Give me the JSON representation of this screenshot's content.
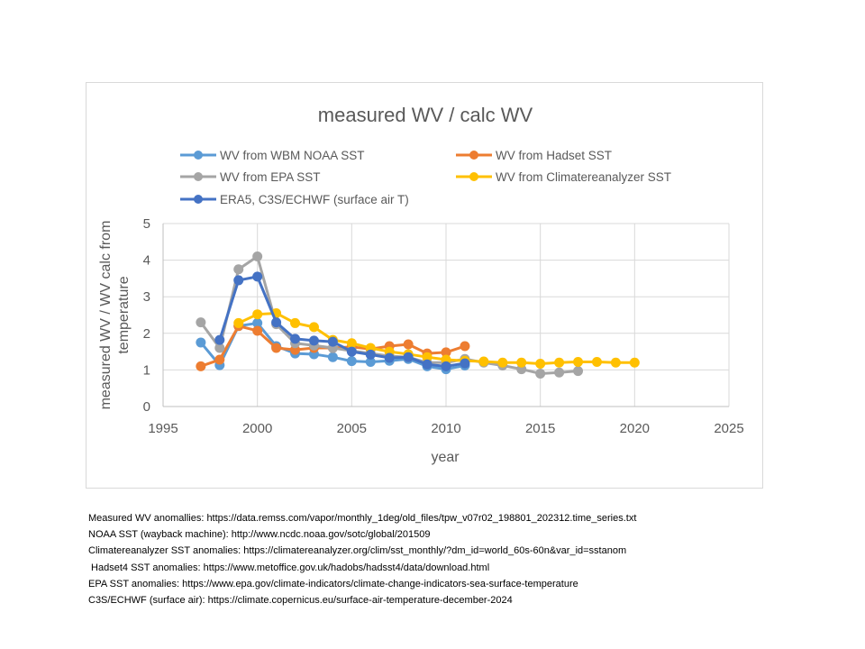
{
  "chart_data": {
    "type": "line",
    "title": "measured WV / calc WV",
    "xlabel": "year",
    "ylabel_lines": [
      "measured WV / WV calc from",
      "temperature"
    ],
    "xlim": [
      1995,
      2025
    ],
    "ylim": [
      0,
      5
    ],
    "x_ticks": [
      1995,
      2000,
      2005,
      2010,
      2015,
      2020,
      2025
    ],
    "y_ticks": [
      0,
      1,
      2,
      3,
      4,
      5
    ],
    "grid": true,
    "legend_position": "top",
    "series": [
      {
        "name": "WV from WBM NOAA  SST",
        "color": "#5B9BD5",
        "x": [
          1997,
          1998,
          1999,
          2000,
          2001,
          2002,
          2003,
          2004,
          2005,
          2006,
          2007,
          2008,
          2009,
          2010,
          2011
        ],
        "y": [
          1.75,
          1.13,
          2.2,
          2.28,
          1.65,
          1.45,
          1.43,
          1.35,
          1.24,
          1.22,
          1.25,
          1.3,
          1.1,
          1.02,
          1.12
        ]
      },
      {
        "name": "WV from Hadset SST",
        "color": "#ED7D31",
        "x": [
          1997,
          1998,
          1999,
          2000,
          2001,
          2002,
          2003,
          2004,
          2005,
          2006,
          2007,
          2008,
          2009,
          2010,
          2011
        ],
        "y": [
          1.1,
          1.28,
          2.2,
          2.07,
          1.6,
          1.55,
          1.6,
          1.6,
          1.63,
          1.57,
          1.65,
          1.7,
          1.45,
          1.48,
          1.65
        ]
      },
      {
        "name": "WV from EPA SST",
        "color": "#A5A5A5",
        "x": [
          1997,
          1998,
          1999,
          2000,
          2001,
          2002,
          2003,
          2004,
          2005,
          2006,
          2007,
          2008,
          2009,
          2010,
          2011,
          2012,
          2013,
          2014,
          2015,
          2016,
          2017
        ],
        "y": [
          2.3,
          1.6,
          3.75,
          4.1,
          2.25,
          1.73,
          1.67,
          1.6,
          1.52,
          1.45,
          1.38,
          1.35,
          1.2,
          1.2,
          1.3,
          1.2,
          1.12,
          1.02,
          0.9,
          0.93,
          0.97
        ]
      },
      {
        "name": "WV from Climatereanalyzer SST",
        "color": "#FFC000",
        "x": [
          1999,
          2000,
          2001,
          2002,
          2003,
          2004,
          2005,
          2006,
          2007,
          2008,
          2009,
          2010,
          2011,
          2012,
          2013,
          2014,
          2015,
          2016,
          2017,
          2018,
          2019,
          2020
        ],
        "y": [
          2.28,
          2.52,
          2.55,
          2.28,
          2.17,
          1.82,
          1.73,
          1.6,
          1.5,
          1.43,
          1.35,
          1.28,
          1.25,
          1.23,
          1.2,
          1.2,
          1.17,
          1.2,
          1.22,
          1.22,
          1.2,
          1.2
        ]
      },
      {
        "name": "ERA5, C3S/ECHWF (surface air T)",
        "color": "#4472C4",
        "x": [
          1998,
          1999,
          2000,
          2001,
          2002,
          2003,
          2004,
          2005,
          2006,
          2007,
          2008,
          2009,
          2010,
          2011
        ],
        "y": [
          1.82,
          3.45,
          3.55,
          2.3,
          1.85,
          1.8,
          1.77,
          1.5,
          1.42,
          1.33,
          1.35,
          1.15,
          1.1,
          1.18
        ]
      }
    ]
  },
  "sources": [
    "Measured WV anomallies: https://data.remss.com/vapor/monthly_1deg/old_files/tpw_v07r02_198801_202312.time_series.txt",
    "NOAA SST (wayback machine): http://www.ncdc.noaa.gov/sotc/global/201509",
    "Climatereanalyzer SST anomalies: https://climatereanalyzer.org/clim/sst_monthly/?dm_id=world_60s-60n&var_id=sstanom",
    " Hadset4 SST anomalies: https://www.metoffice.gov.uk/hadobs/hadsst4/data/download.html",
    "EPA SST anomalies: https://www.epa.gov/climate-indicators/climate-change-indicators-sea-surface-temperature",
    "C3S/ECHWF (surface air): https://climate.copernicus.eu/surface-air-temperature-december-2024"
  ]
}
